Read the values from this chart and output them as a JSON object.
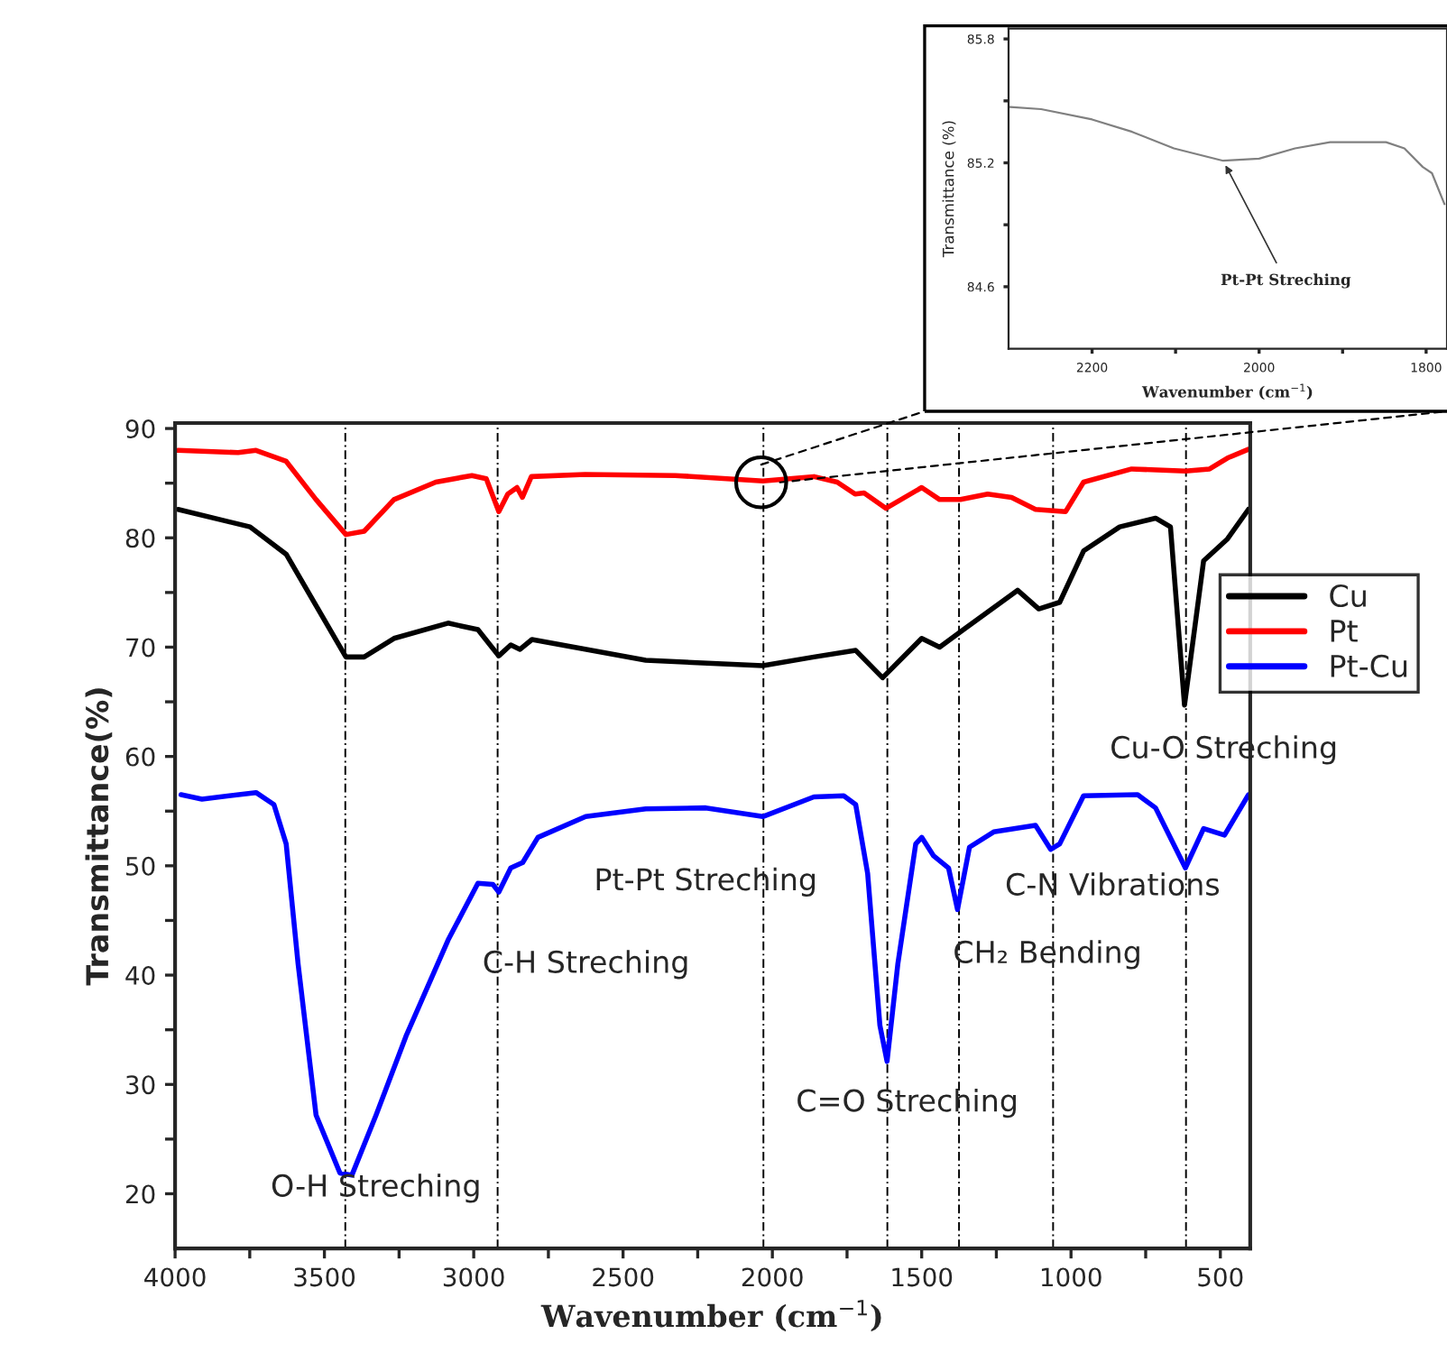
{
  "chart_data": [
    {
      "type": "line",
      "xlabel": "Wavenumber (cm$^{−1}$)",
      "ylabel": "Transmittance(%)",
      "xlim": [
        4000,
        400
      ],
      "ylim": [
        15,
        90.5
      ],
      "xticks": [
        4000,
        {
          "value": 3750,
          "label": null
        },
        3500,
        {
          "value": 3250,
          "label": null
        },
        3000,
        {
          "value": 2750,
          "label": null
        },
        2500,
        {
          "value": 2250,
          "label": null
        },
        2000,
        {
          "value": 1750,
          "label": null
        },
        1500,
        {
          "value": 1250,
          "label": null
        },
        1000,
        {
          "value": 750,
          "label": null
        },
        500
      ],
      "yticks": [
        20,
        {
          "value": 25,
          "label": null
        },
        30,
        {
          "value": 35,
          "label": null
        },
        40,
        {
          "value": 45,
          "label": null
        },
        50,
        {
          "value": 55,
          "label": null
        },
        60,
        {
          "value": 65,
          "label": null
        },
        70,
        {
          "value": 75,
          "label": null
        },
        80,
        {
          "value": 85,
          "label": null
        },
        90
      ],
      "legend": "right",
      "marker": "none",
      "line_style": "solid",
      "series": [
        {
          "name": "Cu",
          "color": "#000000",
          "x": [
            3990,
            3749,
            3628,
            3528,
            3428,
            3367,
            3267,
            3086,
            2986,
            2916,
            2876,
            2845,
            2805,
            2424,
            2032,
            1861,
            1721,
            1631,
            1500,
            1440,
            1360,
            1179,
            1108,
            1038,
            958,
            837,
            717,
            667,
            620,
            556,
            476,
            406
          ],
          "values": [
            82.6,
            81.0,
            78.5,
            73.8,
            69.1,
            69.1,
            70.8,
            72.2,
            71.6,
            69.2,
            70.2,
            69.8,
            70.7,
            68.8,
            68.3,
            69.1,
            69.7,
            67.2,
            70.8,
            70.0,
            71.6,
            75.2,
            73.5,
            74.1,
            78.8,
            81.0,
            81.8,
            81.0,
            64.7,
            77.9,
            79.9,
            82.6
          ]
        },
        {
          "name": "Pt",
          "color": "#ff0000",
          "x": [
            3990,
            3789,
            3729,
            3628,
            3528,
            3428,
            3367,
            3267,
            3127,
            3006,
            2958,
            2916,
            2886,
            2855,
            2837,
            2807,
            2627,
            2325,
            2032,
            1861,
            1783,
            1723,
            1693,
            1620,
            1500,
            1440,
            1370,
            1279,
            1199,
            1119,
            1018,
            958,
            797,
            617,
            536,
            476,
            406
          ],
          "values": [
            88.0,
            87.8,
            88.0,
            87.0,
            83.5,
            80.3,
            80.6,
            83.5,
            85.1,
            85.7,
            85.4,
            82.4,
            84.0,
            84.6,
            83.7,
            85.6,
            85.8,
            85.7,
            85.2,
            85.6,
            85.1,
            84.0,
            84.1,
            82.7,
            84.6,
            83.5,
            83.5,
            84.0,
            83.7,
            82.6,
            82.4,
            85.1,
            86.3,
            86.1,
            86.3,
            87.3,
            88.1
          ]
        },
        {
          "name": "Pt-Cu",
          "color": "#0000ff",
          "x": [
            3980,
            3910,
            3729,
            3669,
            3628,
            3588,
            3528,
            3448,
            3408,
            3327,
            3227,
            3086,
            2986,
            2936,
            2916,
            2876,
            2836,
            2785,
            2625,
            2424,
            2223,
            2032,
            1861,
            1761,
            1721,
            1681,
            1640,
            1616,
            1580,
            1520,
            1500,
            1460,
            1410,
            1380,
            1340,
            1259,
            1119,
            1068,
            1038,
            958,
            777,
            717,
            617,
            556,
            486,
            406
          ],
          "values": [
            56.5,
            56.1,
            56.7,
            55.6,
            52.0,
            41.0,
            27.2,
            21.9,
            21.7,
            27.2,
            34.4,
            43.2,
            48.4,
            48.3,
            47.6,
            49.8,
            50.3,
            52.6,
            54.5,
            55.2,
            55.3,
            54.5,
            56.3,
            56.4,
            55.6,
            49.3,
            35.4,
            32.1,
            41.0,
            52.0,
            52.6,
            50.9,
            49.8,
            46.0,
            51.7,
            53.1,
            53.7,
            51.5,
            52.0,
            56.4,
            56.5,
            55.3,
            49.8,
            53.4,
            52.8,
            56.5
          ]
        }
      ],
      "ref_lines": [
        {
          "axis": "x",
          "value": 3430,
          "label": "O-H Streching",
          "color": "#000000",
          "line_style": "dashed"
        },
        {
          "axis": "x",
          "value": 2920,
          "label": "C-H Streching",
          "color": "#000000",
          "line_style": "dashed"
        },
        {
          "axis": "x",
          "value": 2030,
          "label": "Pt-Pt Streching",
          "color": "#000000",
          "line_style": "dashed"
        },
        {
          "axis": "x",
          "value": 1615,
          "label": "C=O Streching",
          "color": "#000000",
          "line_style": "dashed"
        },
        {
          "axis": "x",
          "value": 1375,
          "label": "CH₂ Bending",
          "color": "#000000",
          "line_style": "dashed"
        },
        {
          "axis": "x",
          "value": 1060,
          "label": "C-N Vibrations",
          "color": "#000000",
          "line_style": "dashed"
        },
        {
          "axis": "x",
          "value": 615,
          "label": "Cu-O Streching",
          "color": "#000000",
          "line_style": "dashed"
        }
      ]
    },
    {
      "type": "line",
      "xlabel": "Wavenumber (cm$^{−1}$)",
      "ylabel": "Transmittance (%)",
      "xlim": [
        2300,
        1775
      ],
      "ylim": [
        84.3,
        85.85
      ],
      "xticks": [
        2200,
        {
          "value": 2100,
          "label": null
        },
        2000,
        {
          "value": 1900,
          "label": null
        },
        1800
      ],
      "yticks": [
        85.8,
        {
          "value": 85.5,
          "label": null
        },
        85.2,
        {
          "value": 84.9,
          "label": null
        },
        84.6
      ],
      "marker": "none",
      "line_style": "solid",
      "series": [
        {
          "color": "#808080",
          "x": [
            2298,
            2261,
            2200,
            2152,
            2102,
            2043,
            2000,
            1957,
            1915,
            1848,
            1826,
            1804,
            1793,
            1778
          ],
          "values": [
            85.47,
            85.46,
            85.41,
            85.35,
            85.27,
            85.21,
            85.22,
            85.27,
            85.3,
            85.3,
            85.27,
            85.18,
            85.15,
            85.0
          ]
        }
      ],
      "annotations": [
        {
          "text": "Pt-Pt Streching",
          "x": 2043,
          "y": 85.21
        }
      ]
    }
  ]
}
